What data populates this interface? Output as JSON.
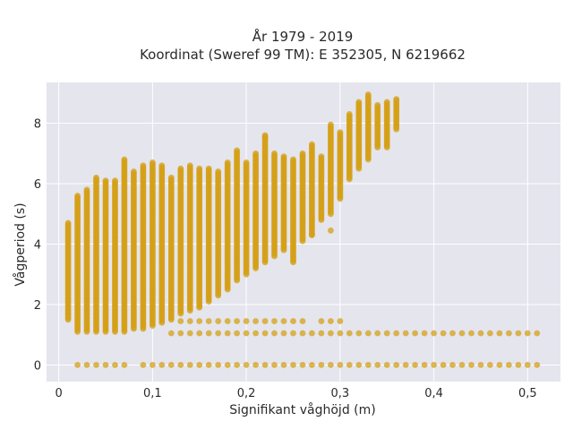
{
  "chart_data": {
    "type": "scatter",
    "title_line1": "År 1979 - 2019",
    "title_line2": "Koordinat (Sweref 99 TM): E 352305, N 6219662",
    "xlabel": "Signifikant våghöjd (m)",
    "ylabel": "Vågperiod (s)",
    "xlim": [
      -0.013,
      0.535
    ],
    "ylim": [
      -0.55,
      9.35
    ],
    "xticks": [
      0,
      0.1,
      0.2,
      0.3,
      0.4,
      0.5
    ],
    "xtick_labels": [
      "0",
      "0,1",
      "0,2",
      "0,3",
      "0,4",
      "0,5"
    ],
    "yticks": [
      0,
      2,
      4,
      6,
      8
    ],
    "ytick_labels": [
      "0",
      "2",
      "4",
      "6",
      "8"
    ],
    "grid": true,
    "legend": "none",
    "marker_color": "#D4A017",
    "marker_opacity": 0.75,
    "background_color": "#E5E5EE",
    "bin_width": 0.01,
    "columns": [
      {
        "x": 0.01,
        "ymin": 1.5,
        "ymax": 4.7
      },
      {
        "x": 0.02,
        "ymin": 1.1,
        "ymax": 5.6
      },
      {
        "x": 0.03,
        "ymin": 1.1,
        "ymax": 5.8
      },
      {
        "x": 0.04,
        "ymin": 1.1,
        "ymax": 6.2
      },
      {
        "x": 0.05,
        "ymin": 1.1,
        "ymax": 6.1
      },
      {
        "x": 0.06,
        "ymin": 1.1,
        "ymax": 6.1
      },
      {
        "x": 0.07,
        "ymin": 1.1,
        "ymax": 6.8
      },
      {
        "x": 0.08,
        "ymin": 1.2,
        "ymax": 6.4
      },
      {
        "x": 0.09,
        "ymin": 1.2,
        "ymax": 6.6
      },
      {
        "x": 0.1,
        "ymin": 1.3,
        "ymax": 6.7
      },
      {
        "x": 0.11,
        "ymin": 1.4,
        "ymax": 6.6
      },
      {
        "x": 0.12,
        "ymin": 1.5,
        "ymax": 6.2
      },
      {
        "x": 0.13,
        "ymin": 1.7,
        "ymax": 6.5
      },
      {
        "x": 0.14,
        "ymin": 1.8,
        "ymax": 6.6
      },
      {
        "x": 0.15,
        "ymin": 1.9,
        "ymax": 6.5
      },
      {
        "x": 0.16,
        "ymin": 2.1,
        "ymax": 6.5
      },
      {
        "x": 0.17,
        "ymin": 2.3,
        "ymax": 6.4
      },
      {
        "x": 0.18,
        "ymin": 2.5,
        "ymax": 6.7
      },
      {
        "x": 0.19,
        "ymin": 2.8,
        "ymax": 7.1
      },
      {
        "x": 0.2,
        "ymin": 3.0,
        "ymax": 6.7
      },
      {
        "x": 0.21,
        "ymin": 3.2,
        "ymax": 7.0
      },
      {
        "x": 0.22,
        "ymin": 3.4,
        "ymax": 7.6
      },
      {
        "x": 0.23,
        "ymin": 3.6,
        "ymax": 7.0
      },
      {
        "x": 0.24,
        "ymin": 3.8,
        "ymax": 6.9
      },
      {
        "x": 0.25,
        "ymin": 3.4,
        "ymax": 6.8
      },
      {
        "x": 0.26,
        "ymin": 4.1,
        "ymax": 7.0
      },
      {
        "x": 0.27,
        "ymin": 4.3,
        "ymax": 7.3
      },
      {
        "x": 0.28,
        "ymin": 4.8,
        "ymax": 6.9
      },
      {
        "x": 0.29,
        "ymin": 5.0,
        "ymax": 7.9
      },
      {
        "x": 0.3,
        "ymin": 5.5,
        "ymax": 7.7
      },
      {
        "x": 0.31,
        "ymin": 6.2,
        "ymax": 8.3
      },
      {
        "x": 0.32,
        "ymin": 6.5,
        "ymax": 8.7
      },
      {
        "x": 0.33,
        "ymin": 6.8,
        "ymax": 8.9
      },
      {
        "x": 0.34,
        "ymin": 7.2,
        "ymax": 8.6
      },
      {
        "x": 0.35,
        "ymin": 7.2,
        "ymax": 8.7
      },
      {
        "x": 0.36,
        "ymin": 7.8,
        "ymax": 8.8
      }
    ],
    "outliers": [
      {
        "x": 0.22,
        "y": 7.55
      },
      {
        "x": 0.27,
        "y": 4.3
      },
      {
        "x": 0.29,
        "y": 4.45
      },
      {
        "x": 0.31,
        "y": 6.15
      },
      {
        "x": 0.29,
        "y": 7.95
      },
      {
        "x": 0.33,
        "y": 8.95
      }
    ],
    "rows": [
      {
        "y": 0.0,
        "x": [
          0.02,
          0.03,
          0.04,
          0.05,
          0.06,
          0.07,
          0.09,
          0.1,
          0.11,
          0.12,
          0.13,
          0.14,
          0.15,
          0.16,
          0.17,
          0.18,
          0.19,
          0.2,
          0.21,
          0.22,
          0.23,
          0.24,
          0.25,
          0.26,
          0.27,
          0.28,
          0.29,
          0.3,
          0.31,
          0.32,
          0.33,
          0.34,
          0.35,
          0.36,
          0.37,
          0.38,
          0.39,
          0.4,
          0.41,
          0.42,
          0.43,
          0.44,
          0.45,
          0.46,
          0.47,
          0.48,
          0.49,
          0.5,
          0.51
        ]
      },
      {
        "y": 1.05,
        "x": [
          0.12,
          0.13,
          0.14,
          0.15,
          0.16,
          0.17,
          0.18,
          0.19,
          0.2,
          0.21,
          0.22,
          0.23,
          0.24,
          0.25,
          0.26,
          0.27,
          0.28,
          0.29,
          0.3,
          0.31,
          0.32,
          0.33,
          0.34,
          0.35,
          0.36,
          0.37,
          0.38,
          0.39,
          0.4,
          0.41,
          0.42,
          0.43,
          0.44,
          0.45,
          0.46,
          0.47,
          0.48,
          0.49,
          0.5,
          0.51
        ]
      },
      {
        "y": 1.45,
        "x": [
          0.13,
          0.14,
          0.15,
          0.16,
          0.17,
          0.18,
          0.19,
          0.2,
          0.21,
          0.22,
          0.23,
          0.24,
          0.25,
          0.26,
          0.28,
          0.29,
          0.3
        ]
      }
    ]
  }
}
